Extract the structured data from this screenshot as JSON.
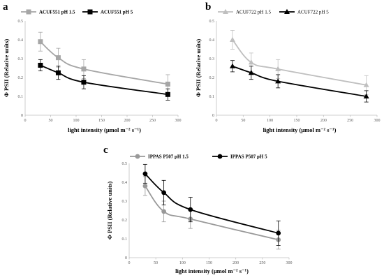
{
  "chart_data": [
    {
      "type": "line",
      "panel": "a",
      "x_ticks": [
        0,
        50,
        100,
        150,
        200,
        250,
        300
      ],
      "y_ticks": [
        0,
        0.1,
        0.2,
        0.3,
        0.4,
        0.5
      ],
      "xlim": [
        0,
        300
      ],
      "ylim": [
        0,
        0.5
      ],
      "xlabel": "light intensity (μmol m⁻² s⁻¹)",
      "ylabel": "Φ PSII (Relative units)",
      "legend_position": "top-left",
      "series": [
        {
          "name": "ACUF551 pH 1.5",
          "color": "#a6a6a6",
          "marker": "square",
          "legend_bold": true,
          "x": [
            30,
            65,
            115,
            280
          ],
          "y": [
            0.39,
            0.305,
            0.245,
            0.165
          ],
          "err": [
            0.05,
            0.05,
            0.05,
            0.05
          ]
        },
        {
          "name": "ACUF551 pH 5",
          "color": "#000000",
          "marker": "square",
          "legend_bold": true,
          "x": [
            30,
            65,
            115,
            280
          ],
          "y": [
            0.265,
            0.225,
            0.175,
            0.11
          ],
          "err": [
            0.03,
            0.035,
            0.035,
            0.03
          ]
        }
      ]
    },
    {
      "type": "line",
      "panel": "b",
      "x_ticks": [
        0,
        50,
        100,
        150,
        200,
        250,
        300
      ],
      "y_ticks": [
        0,
        0.1,
        0.2,
        0.3,
        0.4,
        0.5
      ],
      "xlim": [
        0,
        300
      ],
      "ylim": [
        0,
        0.5
      ],
      "xlabel": "light intensity (μmol m⁻² s⁻¹)",
      "ylabel": "Φ PSII (Relative units)",
      "legend_position": "top-left",
      "series": [
        {
          "name": "ACUF722 pH 1.5",
          "color": "#bfbfbf",
          "marker": "triangle",
          "legend_bold": false,
          "x": [
            30,
            65,
            115,
            280
          ],
          "y": [
            0.4,
            0.28,
            0.245,
            0.16
          ],
          "err": [
            0.05,
            0.05,
            0.05,
            0.05
          ]
        },
        {
          "name": "ACUF722 pH 5",
          "color": "#000000",
          "marker": "triangle",
          "legend_bold": false,
          "x": [
            30,
            65,
            115,
            280
          ],
          "y": [
            0.26,
            0.225,
            0.18,
            0.1
          ],
          "err": [
            0.03,
            0.035,
            0.035,
            0.03
          ]
        }
      ]
    },
    {
      "type": "line",
      "panel": "c",
      "x_ticks": [
        0,
        50,
        100,
        150,
        200,
        250,
        300
      ],
      "y_ticks": [
        0,
        0.1,
        0.2,
        0.3,
        0.4,
        0.5
      ],
      "xlim": [
        0,
        300
      ],
      "ylim": [
        0,
        0.5
      ],
      "xlabel": "light intensity (μmol m⁻² s⁻¹)",
      "ylabel": "Φ PSII (Relative units)",
      "legend_position": "top-left",
      "series": [
        {
          "name": "IPPAS P507 pH 1.5",
          "color": "#999999",
          "marker": "circle",
          "legend_bold": true,
          "x": [
            30,
            65,
            115,
            280
          ],
          "y": [
            0.38,
            0.245,
            0.205,
            0.095
          ],
          "err": [
            0.05,
            0.055,
            0.05,
            0.05
          ]
        },
        {
          "name": "IPPAS P507 pH 5",
          "color": "#000000",
          "marker": "circle",
          "legend_bold": true,
          "x": [
            30,
            65,
            115,
            280
          ],
          "y": [
            0.445,
            0.345,
            0.255,
            0.13
          ],
          "err": [
            0.05,
            0.065,
            0.065,
            0.065
          ]
        }
      ]
    }
  ]
}
